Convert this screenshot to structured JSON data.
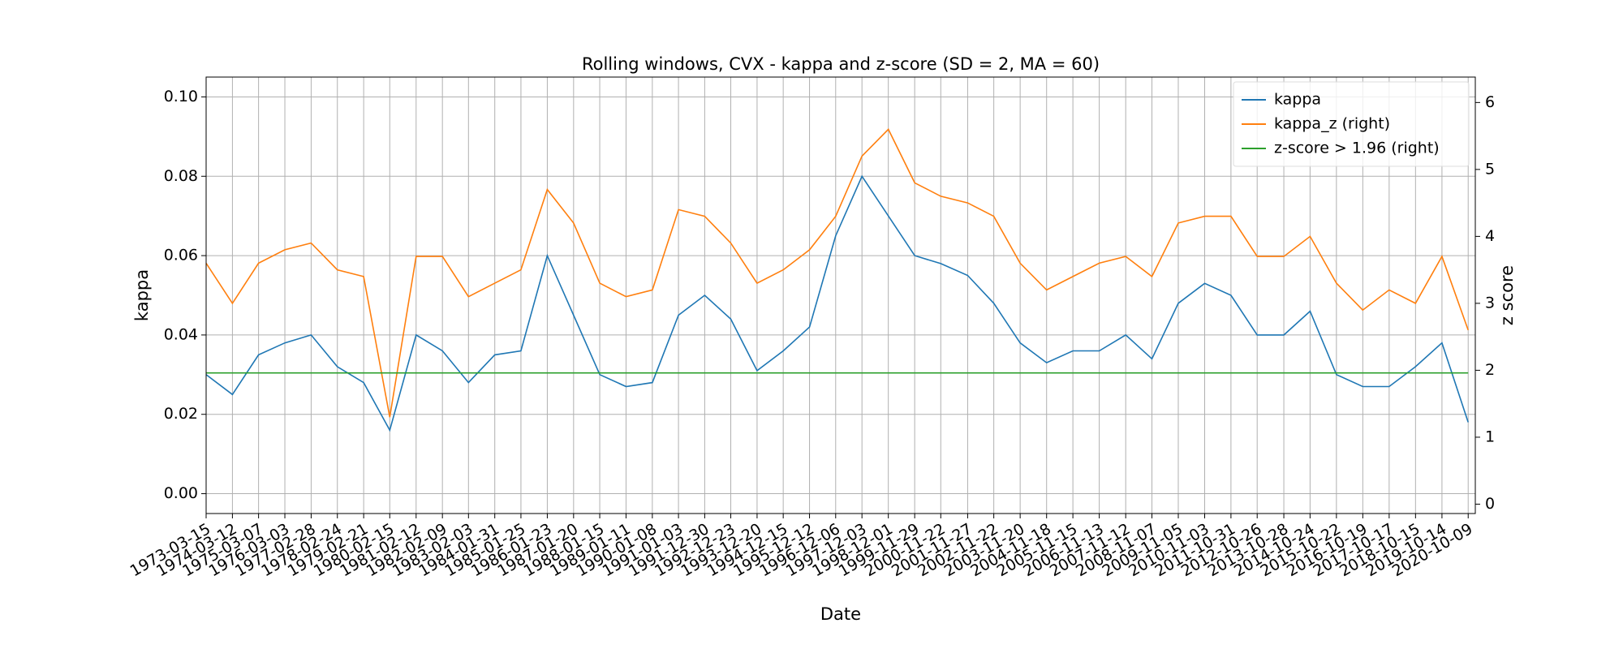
{
  "chart_data": {
    "type": "line",
    "title": "Rolling windows, CVX - kappa and z-score (SD = 2, MA = 60)",
    "xlabel": "Date",
    "ylabel": "kappa",
    "y2label": "z score",
    "x": [
      "1973-03-15",
      "1974-03-12",
      "1975-03-07",
      "1976-03-03",
      "1977-02-28",
      "1978-02-24",
      "1979-02-21",
      "1980-02-15",
      "1981-02-12",
      "1982-02-09",
      "1983-02-03",
      "1984-01-31",
      "1985-01-25",
      "1986-01-23",
      "1987-01-20",
      "1988-01-15",
      "1989-01-11",
      "1990-01-08",
      "1991-01-03",
      "1991-12-30",
      "1992-12-23",
      "1993-12-20",
      "1994-12-15",
      "1995-12-12",
      "1996-12-06",
      "1997-12-03",
      "1998-12-01",
      "1999-11-29",
      "2000-11-22",
      "2001-11-27",
      "2002-11-22",
      "2003-11-20",
      "2004-11-18",
      "2005-11-15",
      "2006-11-13",
      "2007-11-12",
      "2008-11-07",
      "2009-11-05",
      "2010-11-03",
      "2011-10-31",
      "2012-10-26",
      "2013-10-28",
      "2014-10-24",
      "2015-10-22",
      "2016-10-19",
      "2017-10-17",
      "2018-10-15",
      "2019-10-14",
      "2020-10-09"
    ],
    "series": [
      {
        "name": "kappa",
        "color": "#1f77b4",
        "axis": "y",
        "values": [
          0.03,
          0.025,
          0.035,
          0.038,
          0.04,
          0.032,
          0.028,
          0.016,
          0.04,
          0.036,
          0.028,
          0.035,
          0.036,
          0.06,
          0.045,
          0.03,
          0.027,
          0.028,
          0.045,
          0.05,
          0.044,
          0.031,
          0.036,
          0.042,
          0.065,
          0.08,
          0.07,
          0.06,
          0.058,
          0.055,
          0.048,
          0.038,
          0.033,
          0.036,
          0.036,
          0.04,
          0.034,
          0.048,
          0.053,
          0.05,
          0.04,
          0.04,
          0.046,
          0.03,
          0.027,
          0.027,
          0.032,
          0.038,
          0.018
        ]
      },
      {
        "name": "kappa_z (right)",
        "color": "#ff7f0e",
        "axis": "y2",
        "values": [
          3.6,
          3.0,
          3.6,
          3.8,
          3.9,
          3.5,
          3.4,
          1.3,
          3.7,
          3.7,
          3.1,
          3.3,
          3.5,
          4.7,
          4.2,
          3.3,
          3.1,
          3.2,
          4.4,
          4.3,
          3.9,
          3.3,
          3.5,
          3.8,
          4.3,
          5.2,
          5.6,
          4.8,
          4.6,
          4.5,
          4.3,
          3.6,
          3.2,
          3.4,
          3.6,
          3.7,
          3.4,
          4.2,
          4.3,
          4.3,
          3.7,
          3.7,
          4.0,
          3.3,
          2.9,
          3.2,
          3.0,
          3.7,
          2.6
        ]
      },
      {
        "name": "z-score > 1.96 (right)",
        "color": "#2ca02c",
        "axis": "y2",
        "values": [
          1.96,
          1.96,
          1.96,
          1.96,
          1.96,
          1.96,
          1.96,
          1.96,
          1.96,
          1.96,
          1.96,
          1.96,
          1.96,
          1.96,
          1.96,
          1.96,
          1.96,
          1.96,
          1.96,
          1.96,
          1.96,
          1.96,
          1.96,
          1.96,
          1.96,
          1.96,
          1.96,
          1.96,
          1.96,
          1.96,
          1.96,
          1.96,
          1.96,
          1.96,
          1.96,
          1.96,
          1.96,
          1.96,
          1.96,
          1.96,
          1.96,
          1.96,
          1.96,
          1.96,
          1.96,
          1.96,
          1.96,
          1.96,
          1.96
        ]
      }
    ],
    "xlim": [
      "1973-03-15",
      "2021-01-15"
    ],
    "xticks": [
      "1973-03-15",
      "1974-03-12",
      "1975-03-07",
      "1976-03-03",
      "1977-02-28",
      "1978-02-24",
      "1979-02-21",
      "1980-02-15",
      "1981-02-12",
      "1982-02-09",
      "1983-02-03",
      "1984-01-31",
      "1985-01-25",
      "1986-01-23",
      "1987-01-20",
      "1988-01-15",
      "1989-01-11",
      "1990-01-08",
      "1991-01-03",
      "1991-12-30",
      "1992-12-23",
      "1993-12-20",
      "1994-12-15",
      "1995-12-12",
      "1996-12-06",
      "1997-12-03",
      "1998-12-01",
      "1999-11-29",
      "2000-11-22",
      "2001-11-27",
      "2002-11-22",
      "2003-11-20",
      "2004-11-18",
      "2005-11-15",
      "2006-11-13",
      "2007-11-12",
      "2008-11-07",
      "2009-11-05",
      "2010-11-03",
      "2011-10-31",
      "2012-10-26",
      "2013-10-28",
      "2014-10-24",
      "2015-10-22",
      "2016-10-19",
      "2017-10-17",
      "2018-10-15",
      "2019-10-14",
      "2020-10-09"
    ],
    "ylim": [
      -0.005,
      0.105
    ],
    "yticks": [
      {
        "value": 0,
        "label": "0.00"
      },
      0.02,
      0.04,
      0.06,
      0.08,
      {
        "value": 0.1,
        "label": "0.10"
      }
    ],
    "y2lim": [
      -0.14,
      6.38
    ],
    "y2ticks": [
      0,
      1,
      2,
      3,
      4,
      5,
      6
    ],
    "grid": true,
    "legend": "upper right"
  }
}
